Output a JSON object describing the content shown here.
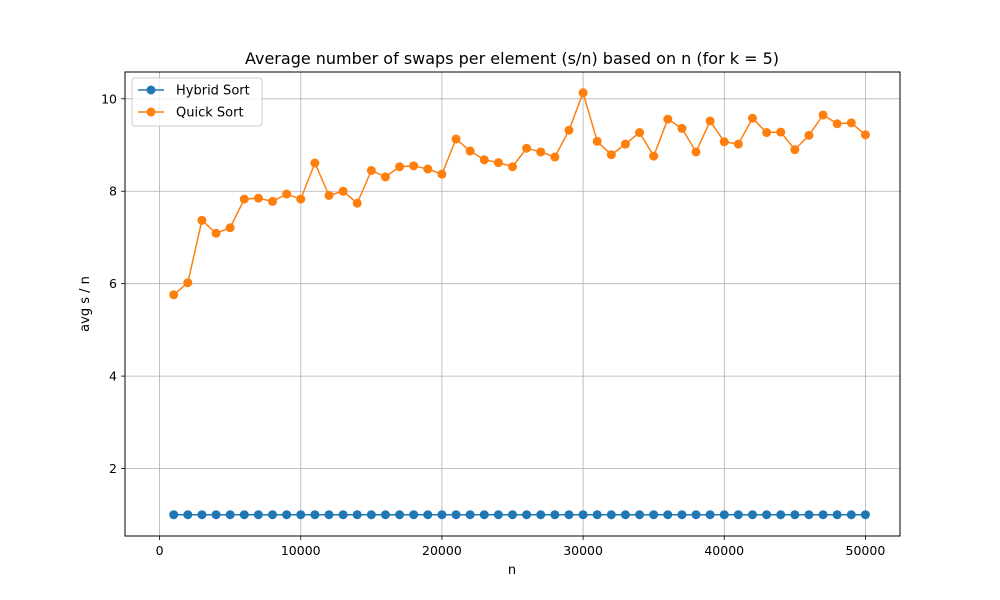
{
  "chart_data": {
    "type": "line",
    "title": "Average number of swaps per element (s/n) based on n (for k = 5)",
    "xlabel": "n",
    "ylabel": "avg s / n",
    "xlim": [
      -2450,
      52450
    ],
    "ylim": [
      0.54,
      10.58
    ],
    "xticks": [
      0,
      10000,
      20000,
      30000,
      40000,
      50000
    ],
    "yticks": [
      2,
      4,
      6,
      8,
      10
    ],
    "grid": true,
    "legend_position": "top-left",
    "x": [
      1000,
      2000,
      3000,
      4000,
      5000,
      6000,
      7000,
      8000,
      9000,
      10000,
      11000,
      12000,
      13000,
      14000,
      15000,
      16000,
      17000,
      18000,
      19000,
      20000,
      21000,
      22000,
      23000,
      24000,
      25000,
      26000,
      27000,
      28000,
      29000,
      30000,
      31000,
      32000,
      33000,
      34000,
      35000,
      36000,
      37000,
      38000,
      39000,
      40000,
      41000,
      42000,
      43000,
      44000,
      45000,
      46000,
      47000,
      48000,
      49000,
      50000
    ],
    "series": [
      {
        "name": "Hybrid Sort",
        "color": "#1f77b4",
        "values": [
          1,
          1,
          1,
          1,
          1,
          1,
          1,
          1,
          1,
          1,
          1,
          1,
          1,
          1,
          1,
          1,
          1,
          1,
          1,
          1,
          1,
          1,
          1,
          1,
          1,
          1,
          1,
          1,
          1,
          1,
          1,
          1,
          1,
          1,
          1,
          1,
          1,
          1,
          1,
          1,
          1,
          1,
          1,
          1,
          1,
          1,
          1,
          1,
          1,
          1
        ]
      },
      {
        "name": "Quick Sort",
        "color": "#ff7f0e",
        "values": [
          5.76,
          6.02,
          7.37,
          7.09,
          7.21,
          7.83,
          7.85,
          7.78,
          7.94,
          7.83,
          8.61,
          7.91,
          8.0,
          7.74,
          8.45,
          8.31,
          8.53,
          8.55,
          8.48,
          8.37,
          9.13,
          8.87,
          8.68,
          8.62,
          8.53,
          8.93,
          8.85,
          8.74,
          9.32,
          10.13,
          9.08,
          8.79,
          9.02,
          9.27,
          8.76,
          9.56,
          9.36,
          8.85,
          9.52,
          9.07,
          9.02,
          9.58,
          9.27,
          9.28,
          8.9,
          9.21,
          9.65,
          9.46,
          9.48,
          9.22
        ]
      }
    ]
  }
}
